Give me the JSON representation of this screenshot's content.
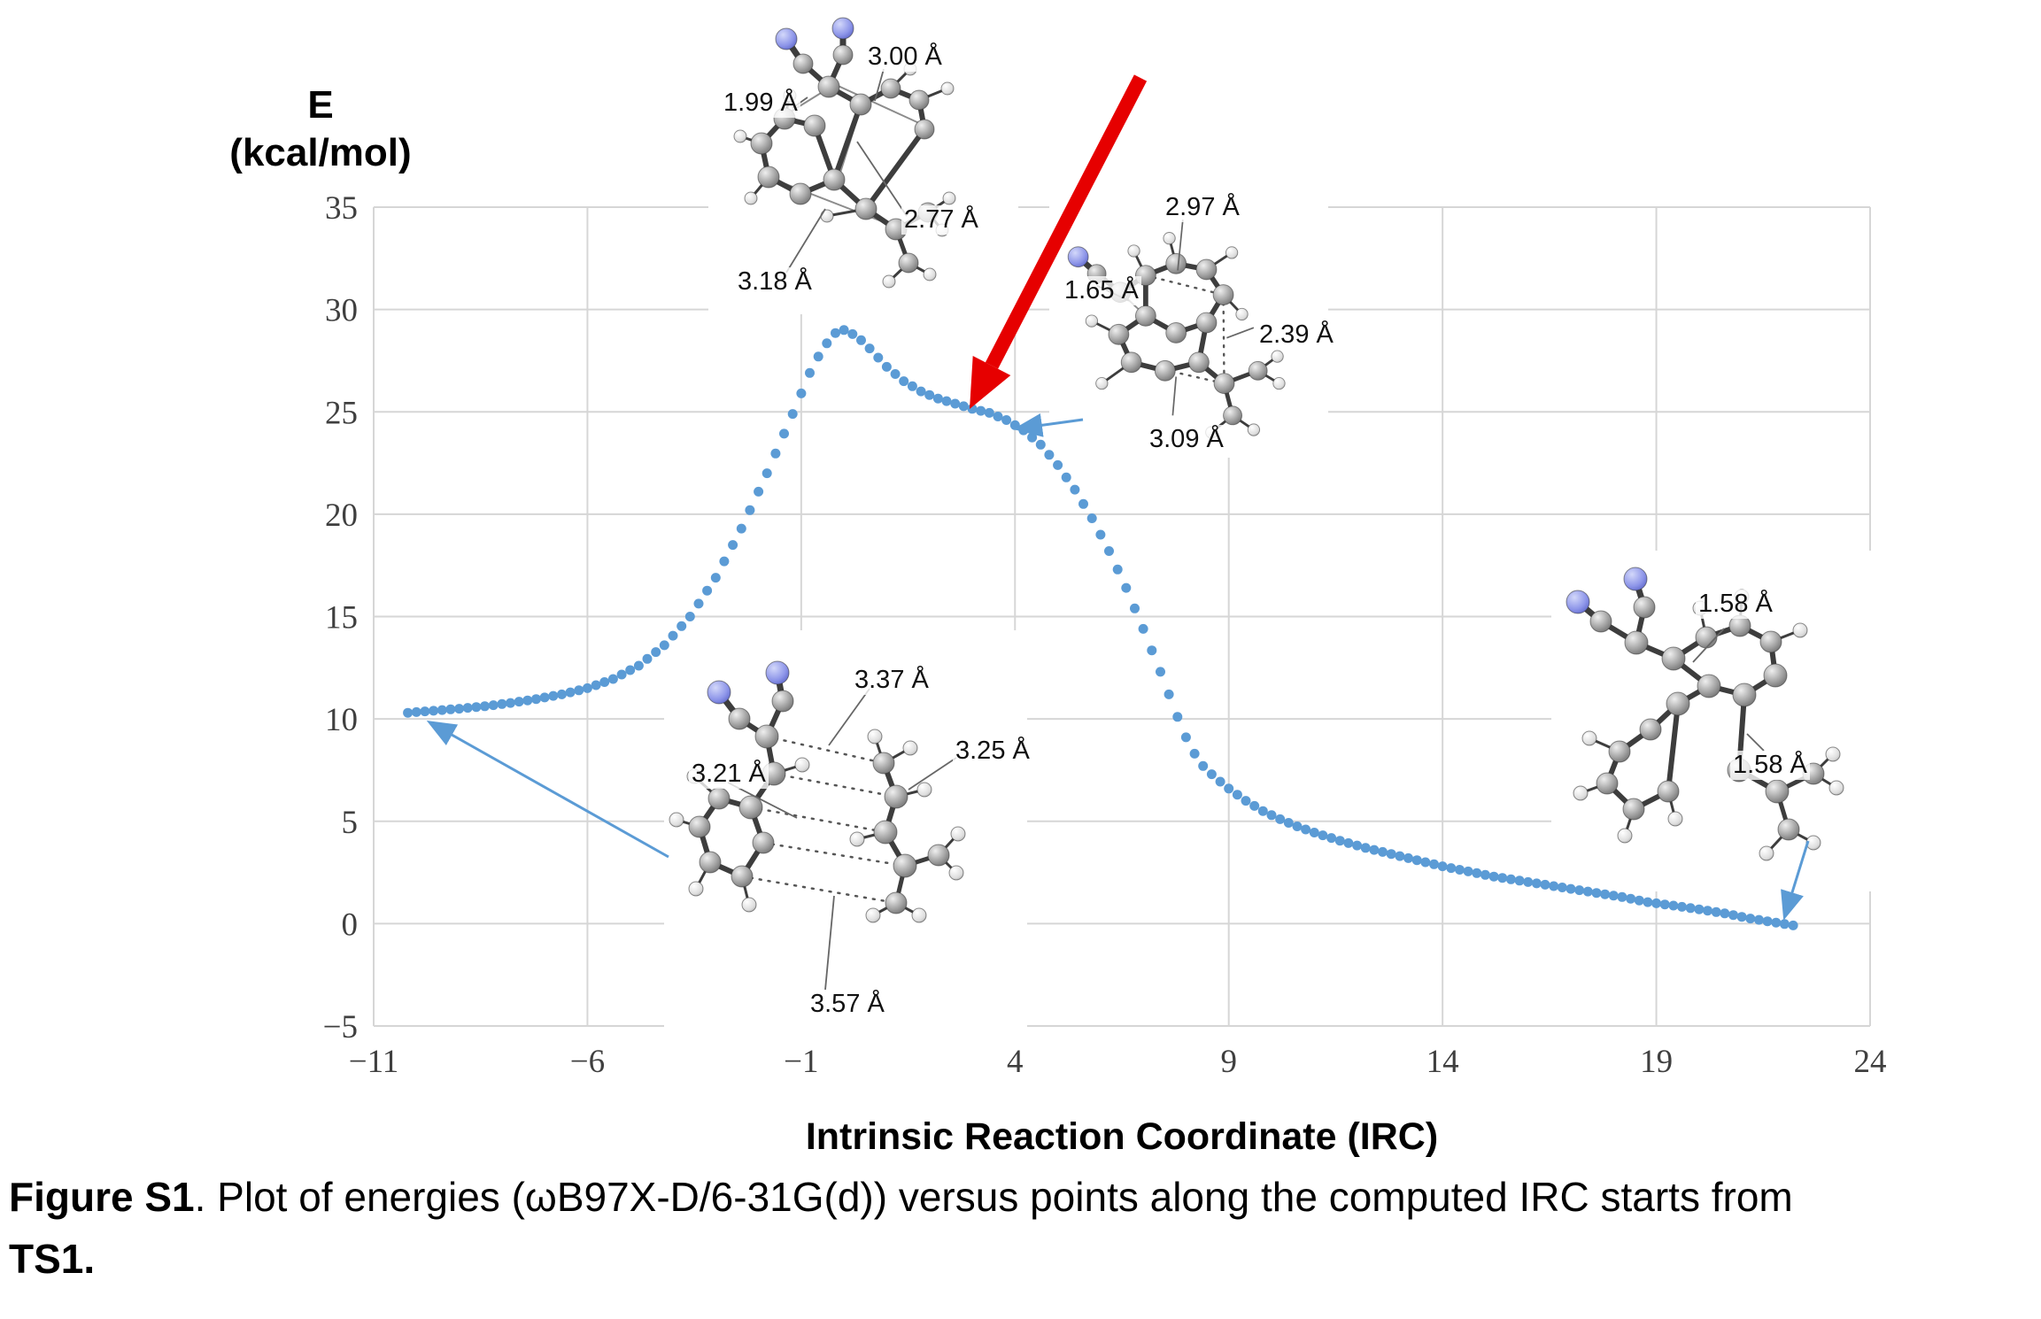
{
  "chart_data": {
    "type": "scatter",
    "title": "",
    "xlabel": "Intrinsic Reaction Coordinate (IRC)",
    "ylabel_line1": "E",
    "ylabel_line2": "(kcal/mol)",
    "xlim": [
      -11,
      24
    ],
    "ylim": [
      -5,
      35
    ],
    "x_ticks": [
      "−11",
      "−6",
      "−1",
      "4",
      "9",
      "14",
      "19",
      "24"
    ],
    "y_ticks": [
      "−5",
      "0",
      "5",
      "10",
      "15",
      "20",
      "25",
      "30",
      "35"
    ],
    "grid": true,
    "legend": "none",
    "point_color": "#5b9bd5",
    "grid_color": "#d6d6d6",
    "series": [
      {
        "name": "IRC energy profile",
        "points": [
          [
            -10.2,
            10.3
          ],
          [
            -9.6,
            10.4
          ],
          [
            -9.0,
            10.5
          ],
          [
            -8.4,
            10.62
          ],
          [
            -7.8,
            10.78
          ],
          [
            -7.2,
            10.97
          ],
          [
            -6.6,
            11.2
          ],
          [
            -6.0,
            11.5
          ],
          [
            -5.4,
            11.95
          ],
          [
            -4.8,
            12.6
          ],
          [
            -4.2,
            13.6
          ],
          [
            -3.6,
            15.0
          ],
          [
            -3.0,
            16.9
          ],
          [
            -2.4,
            19.3
          ],
          [
            -1.8,
            22.0
          ],
          [
            -1.2,
            24.9
          ],
          [
            -0.8,
            26.9
          ],
          [
            -0.5,
            28.1
          ],
          [
            -0.2,
            28.85
          ],
          [
            0.0,
            29.0
          ],
          [
            0.3,
            28.7
          ],
          [
            0.6,
            28.1
          ],
          [
            1.0,
            27.2
          ],
          [
            1.4,
            26.5
          ],
          [
            1.8,
            26.0
          ],
          [
            2.2,
            25.65
          ],
          [
            2.6,
            25.4
          ],
          [
            3.0,
            25.15
          ],
          [
            3.4,
            24.95
          ],
          [
            3.8,
            24.6
          ],
          [
            4.2,
            24.1
          ],
          [
            4.6,
            23.4
          ],
          [
            5.0,
            22.4
          ],
          [
            5.4,
            21.2
          ],
          [
            5.8,
            19.8
          ],
          [
            6.2,
            18.2
          ],
          [
            6.6,
            16.4
          ],
          [
            7.0,
            14.4
          ],
          [
            7.4,
            12.3
          ],
          [
            7.8,
            10.1
          ],
          [
            8.1,
            8.6
          ],
          [
            8.4,
            7.7
          ],
          [
            8.7,
            7.1
          ],
          [
            9.0,
            6.6
          ],
          [
            9.4,
            6.0
          ],
          [
            9.8,
            5.5
          ],
          [
            10.2,
            5.1
          ],
          [
            10.6,
            4.75
          ],
          [
            11.0,
            4.45
          ],
          [
            11.6,
            4.05
          ],
          [
            12.2,
            3.7
          ],
          [
            12.8,
            3.4
          ],
          [
            13.4,
            3.1
          ],
          [
            14.0,
            2.8
          ],
          [
            14.6,
            2.55
          ],
          [
            15.2,
            2.3
          ],
          [
            15.8,
            2.1
          ],
          [
            16.4,
            1.9
          ],
          [
            17.0,
            1.7
          ],
          [
            17.6,
            1.5
          ],
          [
            18.2,
            1.3
          ],
          [
            18.8,
            1.05
          ],
          [
            19.4,
            0.88
          ],
          [
            20.0,
            0.7
          ],
          [
            20.6,
            0.5
          ],
          [
            21.2,
            0.25
          ],
          [
            21.8,
            0.05
          ],
          [
            22.3,
            -0.12
          ]
        ]
      }
    ]
  },
  "annotations": {
    "red_arrow_color": "#e60000",
    "blue_arrow_color": "#5b9bd5"
  },
  "insets": {
    "ts1": {
      "labels": [
        "3.00 Å",
        "1.99 Å",
        "2.77 Å",
        "3.18 Å"
      ]
    },
    "shoulder": {
      "labels": [
        "2.97 Å",
        "1.65 Å",
        "2.39 Å",
        "3.09 Å"
      ]
    },
    "reactant": {
      "labels": [
        "3.37 Å",
        "3.25 Å",
        "3.21 Å",
        "3.57 Å"
      ]
    },
    "product": {
      "labels": [
        "1.58 Å",
        "1.58 Å"
      ]
    }
  },
  "caption": {
    "bold": "Figure S1",
    "text": ". Plot of energies (ωB97X-D/6-31G(d)) versus points along the computed IRC starts from",
    "line2": "TS1."
  }
}
